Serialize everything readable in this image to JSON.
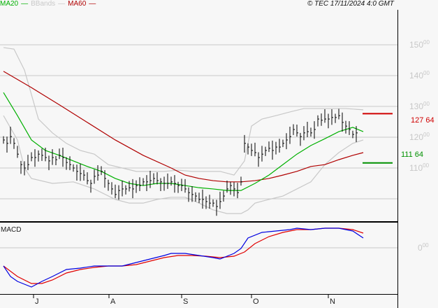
{
  "legend": {
    "ma20": "MA20",
    "bbands": "BBands",
    "ma60": "MA60",
    "copyright": "© TEC 17/11/2024 4:0 GMT"
  },
  "colors": {
    "ma20": "#00b000",
    "bbands": "#c8c8c8",
    "ma60": "#b00000",
    "macd": "#0000e0",
    "signal": "#e00000",
    "resistance": "#d00000",
    "support": "#009000"
  },
  "chart_data": {
    "type": "line",
    "title": "Price with MA20, MA60, Bollinger Bands and MACD",
    "x_ticks": [
      "J",
      "A",
      "S",
      "O",
      "N"
    ],
    "x_tick_days": [
      9.6,
      31.2,
      52,
      72,
      94
    ],
    "y_ticks": [
      {
        "int": "150",
        "dec": "00",
        "v": 150
      },
      {
        "int": "140",
        "dec": "00",
        "v": 140
      },
      {
        "int": "130",
        "dec": "00",
        "v": 130
      },
      {
        "int": "120",
        "dec": "00",
        "v": 120
      },
      {
        "int": "110",
        "dec": "00",
        "v": 110
      },
      {
        "int": "100",
        "dec": "",
        "v": 100
      }
    ],
    "ylim": [
      94,
      161
    ],
    "closes": [
      119.1,
      118,
      120.2,
      118,
      114.5,
      111.1,
      110,
      111.1,
      113.4,
      113.4,
      114.5,
      114.1,
      113.4,
      112.3,
      113.4,
      112.7,
      114.1,
      113.4,
      111.8,
      111.1,
      110,
      108.9,
      108.2,
      107.7,
      105.9,
      105,
      107.3,
      107.7,
      108.9,
      106.6,
      105,
      103.2,
      101.4,
      102.7,
      103.2,
      103.2,
      103.6,
      103.2,
      104.3,
      104.3,
      105.5,
      105.5,
      105.9,
      106.6,
      105.9,
      105.5,
      105,
      105,
      105.5,
      105,
      104.3,
      104.3,
      103.2,
      102,
      101.4,
      100.9,
      99.8,
      99.8,
      99.1,
      98.6,
      98.6,
      97.5,
      99.1,
      100.9,
      103.2,
      104.3,
      103.2,
      102,
      105.5,
      118,
      116.8,
      115.7,
      115,
      113.4,
      114.5,
      115.7,
      116.4,
      115.7,
      116.8,
      116.8,
      118,
      119.1,
      120.2,
      122.5,
      121.4,
      120.2,
      121.4,
      121.8,
      121.4,
      122.5,
      125.9,
      125.5,
      125.9,
      125.9,
      126.4,
      126.4,
      127,
      124.8,
      123.6,
      122.5,
      120.9,
      121.4
    ],
    "ma20": [
      [
        0,
        134.5
      ],
      [
        4,
        127
      ],
      [
        8,
        119.1
      ],
      [
        12,
        115.7
      ],
      [
        16,
        114.1
      ],
      [
        20,
        112.3
      ],
      [
        24,
        110.5
      ],
      [
        28,
        108.9
      ],
      [
        32,
        106.6
      ],
      [
        36,
        105
      ],
      [
        40,
        104.3
      ],
      [
        44,
        105
      ],
      [
        48,
        105
      ],
      [
        52,
        104.3
      ],
      [
        56,
        103.6
      ],
      [
        60,
        103.2
      ],
      [
        64,
        102.7
      ],
      [
        68,
        102.7
      ],
      [
        72,
        105
      ],
      [
        76,
        107.7
      ],
      [
        80,
        111.1
      ],
      [
        84,
        114.5
      ],
      [
        88,
        117.3
      ],
      [
        92,
        119.5
      ],
      [
        96,
        121.8
      ],
      [
        100,
        123.2
      ],
      [
        103,
        121.8
      ]
    ],
    "ma60": [
      [
        0,
        141.4
      ],
      [
        8,
        136.1
      ],
      [
        16,
        130.5
      ],
      [
        24,
        124.8
      ],
      [
        32,
        119.1
      ],
      [
        40,
        114.1
      ],
      [
        48,
        110
      ],
      [
        52,
        107.7
      ],
      [
        56,
        106.6
      ],
      [
        60,
        105.9
      ],
      [
        64,
        105.5
      ],
      [
        68,
        105.5
      ],
      [
        72,
        105.9
      ],
      [
        76,
        106.6
      ],
      [
        80,
        107.7
      ],
      [
        84,
        108.9
      ],
      [
        88,
        110.5
      ],
      [
        92,
        111.1
      ],
      [
        96,
        112.7
      ],
      [
        100,
        114.1
      ],
      [
        103,
        115
      ]
    ],
    "bb_upper": [
      [
        0,
        149.1
      ],
      [
        3,
        148.6
      ],
      [
        6,
        141.8
      ],
      [
        10,
        125.9
      ],
      [
        14,
        121.4
      ],
      [
        18,
        118
      ],
      [
        22,
        115.7
      ],
      [
        26,
        114.5
      ],
      [
        30,
        111.1
      ],
      [
        34,
        110
      ],
      [
        38,
        108.9
      ],
      [
        42,
        108.9
      ],
      [
        46,
        108.9
      ],
      [
        50,
        109.3
      ],
      [
        54,
        108.9
      ],
      [
        58,
        108.9
      ],
      [
        62,
        108.9
      ],
      [
        66,
        107.7
      ],
      [
        69,
        112.3
      ],
      [
        71,
        123.6
      ],
      [
        74,
        125.9
      ],
      [
        78,
        127
      ],
      [
        82,
        128.2
      ],
      [
        86,
        129.3
      ],
      [
        90,
        129.3
      ],
      [
        94,
        129.3
      ],
      [
        98,
        129.3
      ],
      [
        103,
        128.9
      ]
    ],
    "bb_lower": [
      [
        0,
        127
      ],
      [
        4,
        119.1
      ],
      [
        6,
        110
      ],
      [
        8,
        106.6
      ],
      [
        14,
        105
      ],
      [
        20,
        105.5
      ],
      [
        26,
        103.2
      ],
      [
        32,
        99.8
      ],
      [
        36,
        98.6
      ],
      [
        40,
        98.6
      ],
      [
        44,
        99.8
      ],
      [
        48,
        100.5
      ],
      [
        52,
        100.5
      ],
      [
        56,
        98.6
      ],
      [
        60,
        96.4
      ],
      [
        64,
        95.2
      ],
      [
        68,
        95.2
      ],
      [
        70,
        96.4
      ],
      [
        72,
        98.6
      ],
      [
        76,
        99.8
      ],
      [
        80,
        100.9
      ],
      [
        84,
        103.2
      ],
      [
        88,
        105.5
      ],
      [
        92,
        111.1
      ],
      [
        96,
        115
      ],
      [
        100,
        118
      ],
      [
        103,
        119.1
      ]
    ],
    "resistance": {
      "value": 127.64,
      "label": "127 64"
    },
    "support": {
      "value": 111.64,
      "label": "111 64"
    },
    "macd_panel": {
      "label": "MACD",
      "zero_label": "0",
      "zero_dec": "00",
      "macd": [
        [
          0,
          -2.6
        ],
        [
          2,
          -4.1
        ],
        [
          4,
          -4.8
        ],
        [
          8,
          -5.6
        ],
        [
          11,
          -4.8
        ],
        [
          14,
          -4.1
        ],
        [
          18,
          -3.1
        ],
        [
          22,
          -2.9
        ],
        [
          26,
          -2.6
        ],
        [
          30,
          -2.6
        ],
        [
          34,
          -2.6
        ],
        [
          38,
          -2.1
        ],
        [
          42,
          -1.6
        ],
        [
          46,
          -1.1
        ],
        [
          48,
          -0.8
        ],
        [
          52,
          -0.8
        ],
        [
          56,
          -1.1
        ],
        [
          60,
          -1.4
        ],
        [
          62,
          -1.6
        ],
        [
          66,
          -0.8
        ],
        [
          68,
          -0.1
        ],
        [
          70,
          1.4
        ],
        [
          74,
          2.2
        ],
        [
          78,
          2.4
        ],
        [
          82,
          2.6
        ],
        [
          84,
          2.8
        ],
        [
          88,
          2.6
        ],
        [
          92,
          2.8
        ],
        [
          96,
          2.8
        ],
        [
          100,
          2.4
        ],
        [
          103,
          1.4
        ]
      ],
      "signal": [
        [
          0,
          -2.6
        ],
        [
          4,
          -4.1
        ],
        [
          8,
          -5.1
        ],
        [
          11,
          -5.1
        ],
        [
          14,
          -4.6
        ],
        [
          18,
          -3.6
        ],
        [
          22,
          -3.1
        ],
        [
          26,
          -2.8
        ],
        [
          30,
          -2.6
        ],
        [
          34,
          -2.6
        ],
        [
          38,
          -2.4
        ],
        [
          42,
          -1.9
        ],
        [
          46,
          -1.4
        ],
        [
          50,
          -1.1
        ],
        [
          54,
          -1.1
        ],
        [
          58,
          -1.2
        ],
        [
          62,
          -1.4
        ],
        [
          66,
          -1.2
        ],
        [
          69,
          -0.6
        ],
        [
          72,
          0.6
        ],
        [
          76,
          1.6
        ],
        [
          80,
          2.2
        ],
        [
          84,
          2.6
        ],
        [
          88,
          2.6
        ],
        [
          92,
          2.8
        ],
        [
          96,
          2.8
        ],
        [
          100,
          2.6
        ],
        [
          103,
          2.1
        ]
      ]
    }
  }
}
